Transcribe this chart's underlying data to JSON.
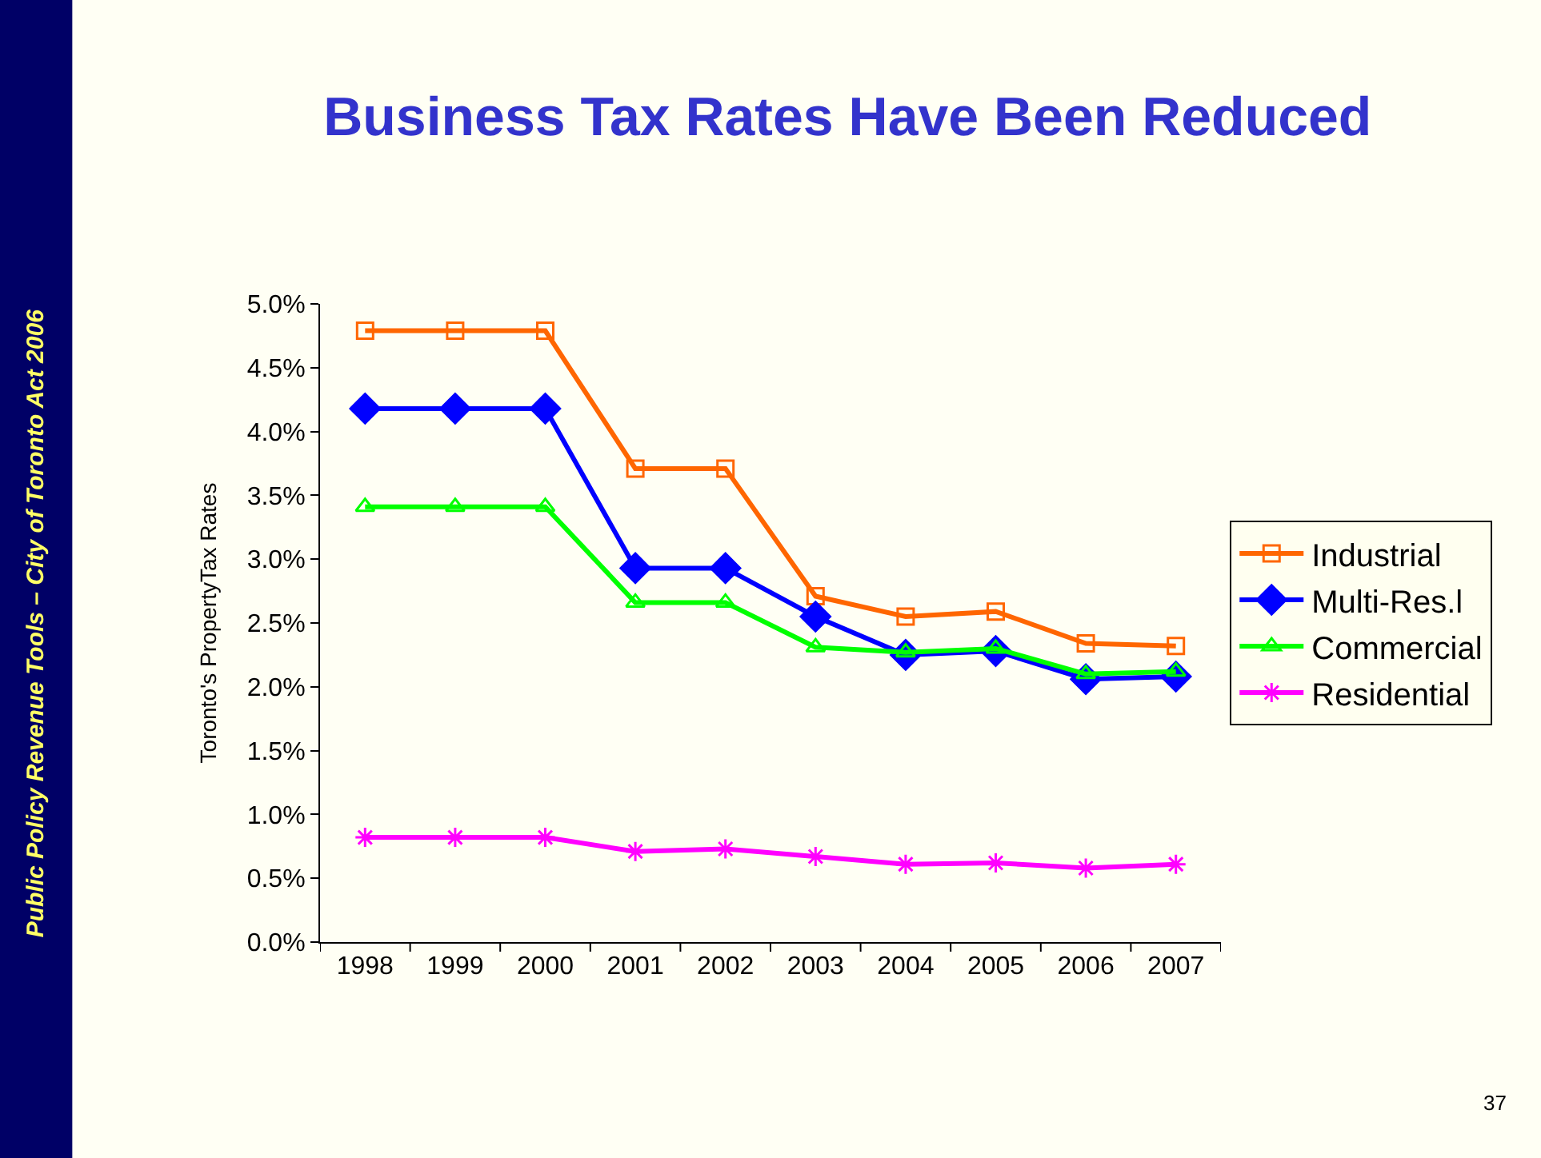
{
  "chart_data": {
    "type": "line",
    "title": "Business Tax Rates Have Been Reduced",
    "ylabel": "Toronto's PropertyTax Rates",
    "categories": [
      "1998",
      "1999",
      "2000",
      "2001",
      "2002",
      "2003",
      "2004",
      "2005",
      "2006",
      "2007"
    ],
    "series": [
      {
        "name": "Industrial",
        "color": "#ff6600",
        "marker": "square",
        "values": [
          4.79,
          4.79,
          4.79,
          3.71,
          3.71,
          2.71,
          2.55,
          2.59,
          2.34,
          2.32
        ]
      },
      {
        "name": "Multi-Res.l",
        "color": "#0000ff",
        "marker": "diamond",
        "values": [
          4.18,
          4.18,
          4.18,
          2.93,
          2.93,
          2.55,
          2.25,
          2.28,
          2.06,
          2.08
        ]
      },
      {
        "name": "Commercial",
        "color": "#00ff00",
        "marker": "triangle",
        "values": [
          3.41,
          3.41,
          3.41,
          2.66,
          2.66,
          2.31,
          2.27,
          2.3,
          2.1,
          2.12
        ]
      },
      {
        "name": "Residential",
        "color": "#ff00ff",
        "marker": "cross",
        "values": [
          0.82,
          0.82,
          0.82,
          0.71,
          0.73,
          0.67,
          0.61,
          0.62,
          0.58,
          0.61
        ]
      }
    ],
    "ylim": [
      0,
      5
    ],
    "yticks": [
      {
        "value": 0,
        "label": "0.0%"
      },
      {
        "value": 0.5,
        "label": "0.5%"
      },
      {
        "value": 1,
        "label": "1.0%"
      },
      {
        "value": 1.5,
        "label": "1.5%"
      },
      {
        "value": 2,
        "label": "2.0%"
      },
      {
        "value": 2.5,
        "label": "2.5%"
      },
      {
        "value": 3,
        "label": "3.0%"
      },
      {
        "value": 3.5,
        "label": "3.5%"
      },
      {
        "value": 4,
        "label": "4.0%"
      },
      {
        "value": 4.5,
        "label": "4.5%"
      },
      {
        "value": 5,
        "label": "5.0%"
      }
    ],
    "grid": false,
    "legend": "right",
    "line_style": "solid",
    "annotations": [
      "Public Policy Revenue Tools – City of Toronto Act 2006",
      "37"
    ]
  }
}
